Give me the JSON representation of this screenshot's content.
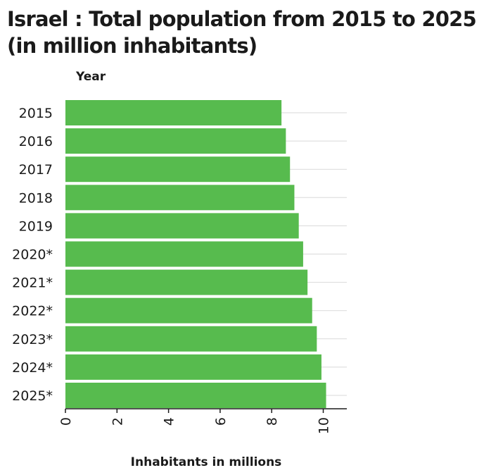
{
  "chart_data": {
    "type": "bar",
    "orientation": "horizontal",
    "title": "Israel : Total population from 2015 to 2025 (in million inhabitants)",
    "xlabel": "Inhabitants in millions",
    "ylabel": "Year",
    "categories": [
      "2015",
      "2016",
      "2017",
      "2018",
      "2019",
      "2020*",
      "2021*",
      "2022*",
      "2023*",
      "2024*",
      "2025*"
    ],
    "values": [
      8.38,
      8.55,
      8.71,
      8.88,
      9.05,
      9.22,
      9.39,
      9.57,
      9.75,
      9.93,
      10.11
    ],
    "xlim": [
      0,
      11
    ],
    "xticks": [
      0,
      2,
      4,
      6,
      8,
      10
    ],
    "xtick_labels": [
      "0",
      "2",
      "4",
      "6",
      "8",
      "10"
    ],
    "grid": true,
    "colors": {
      "bar": "#57bb4e",
      "grid": "#d9d9d9",
      "axis": "#1a1a1a"
    }
  }
}
